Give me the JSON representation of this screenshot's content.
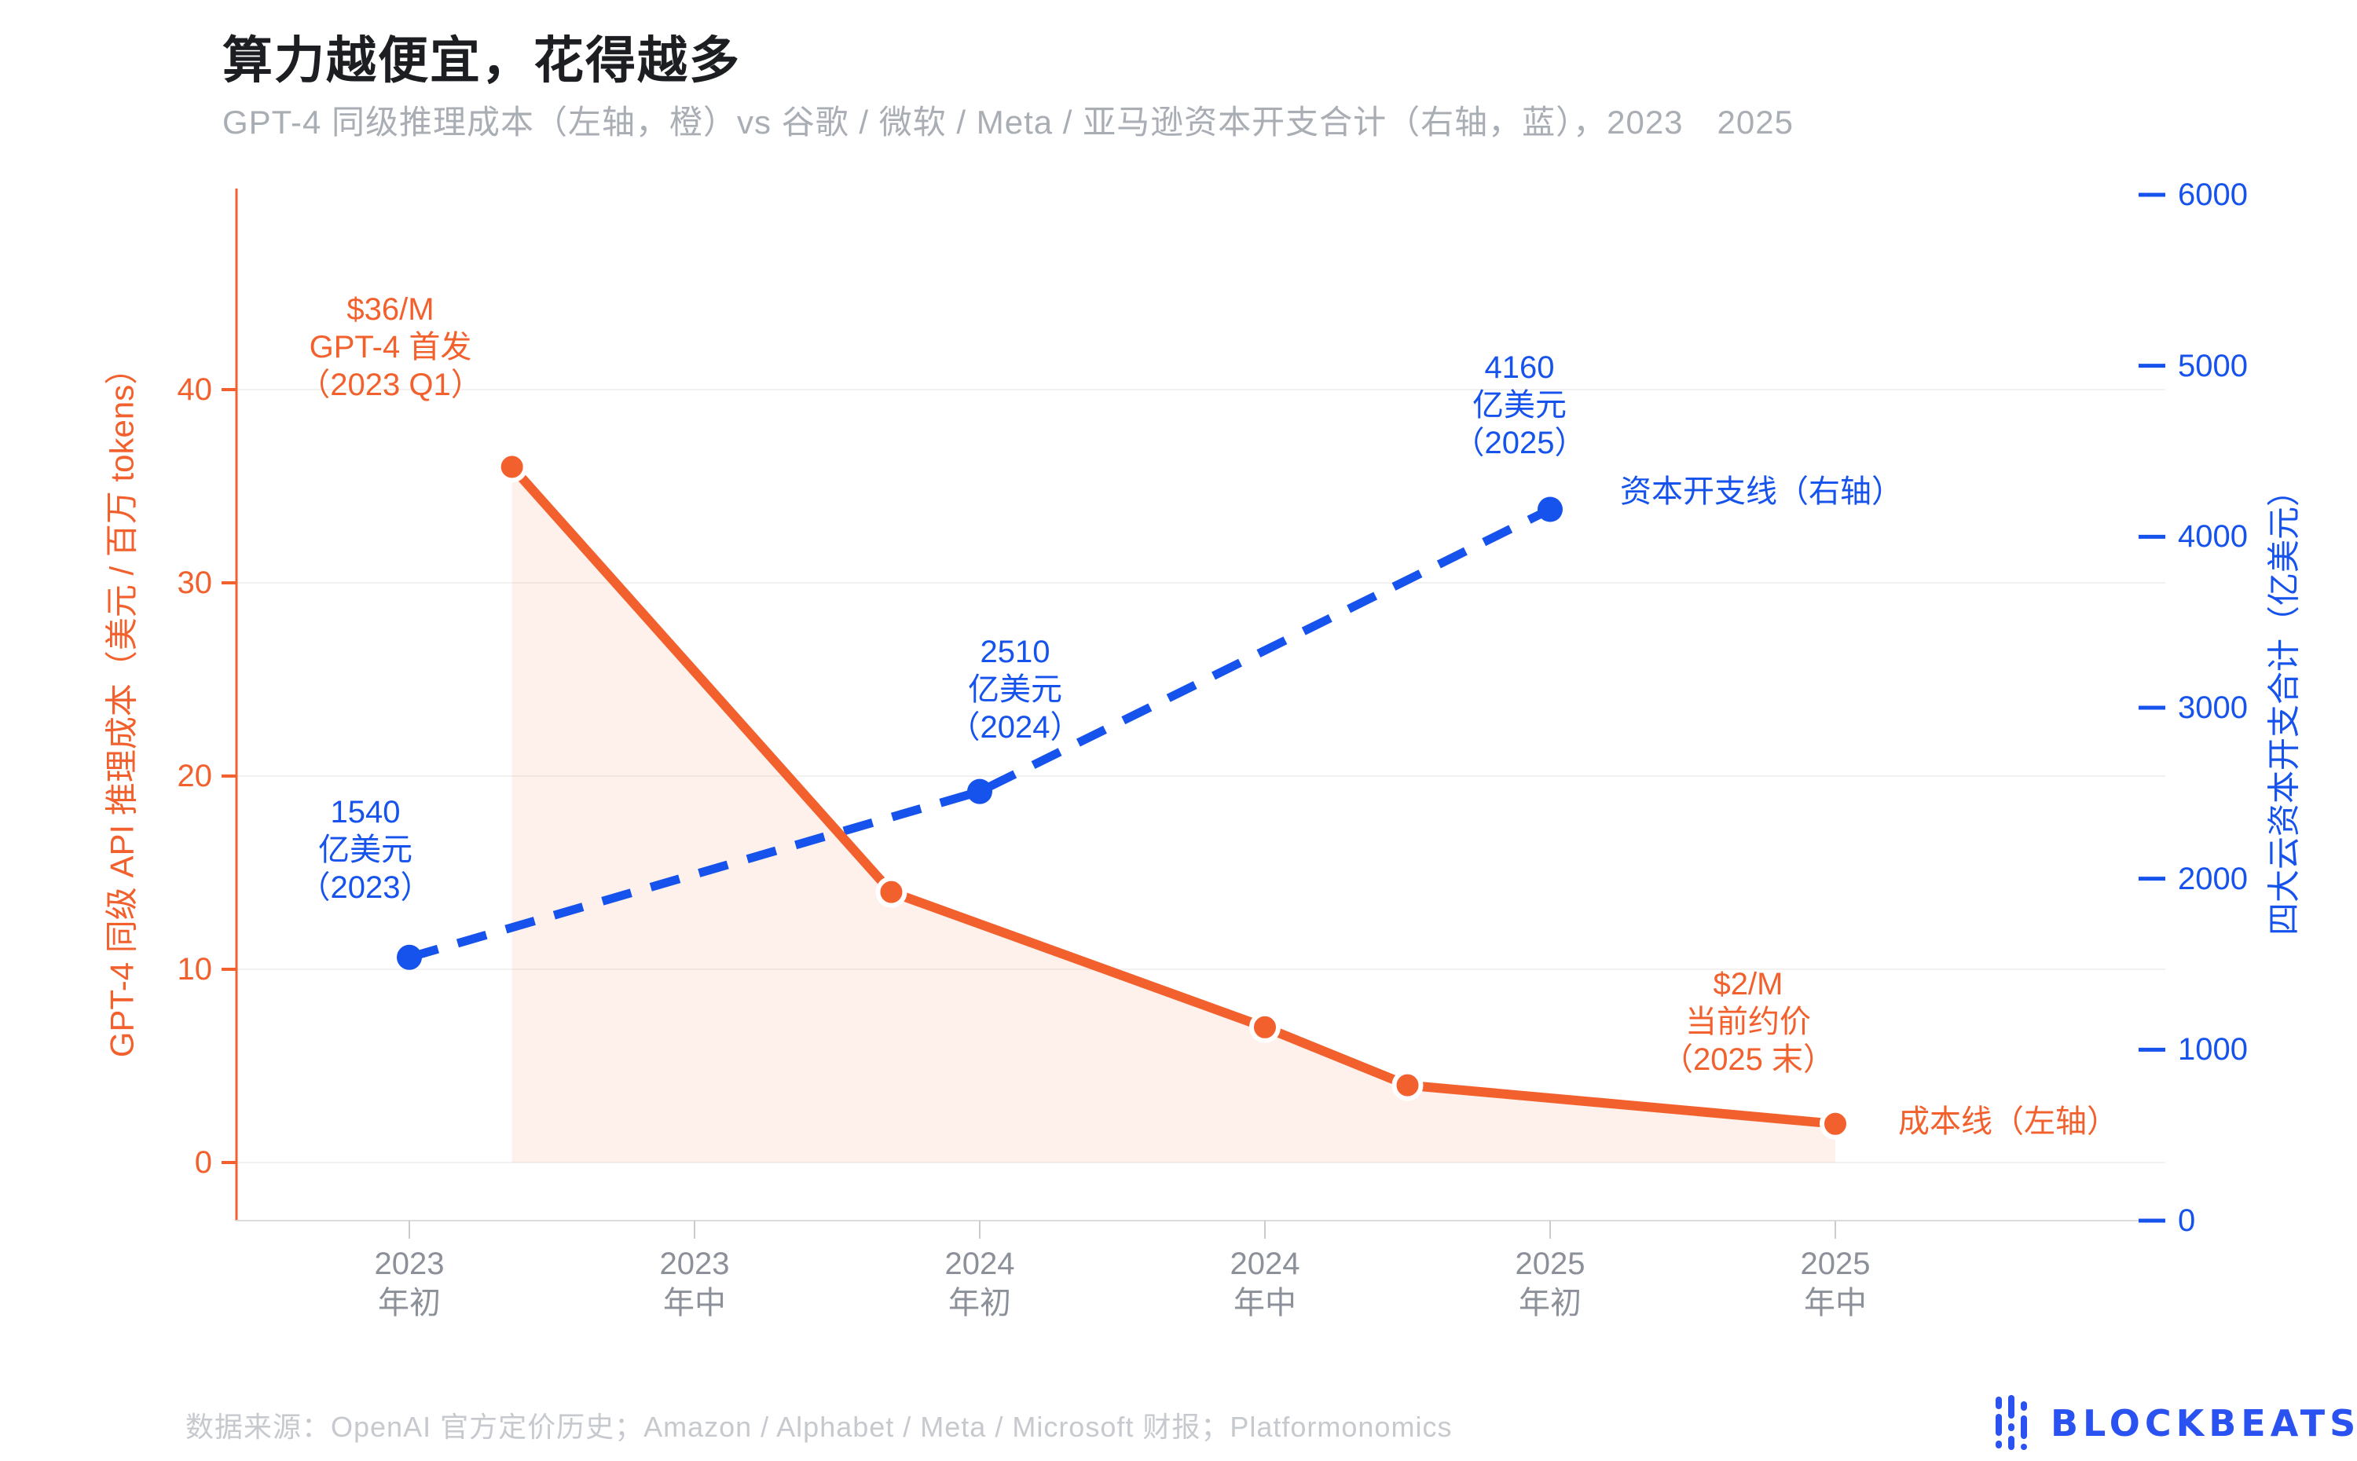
{
  "header": {
    "title": "算力越便宜，花得越多",
    "subtitle": "GPT-4 同级推理成本（左轴，橙）vs 谷歌 / 微软 / Meta / 亚马逊资本开支合计（右轴，蓝），2023　2025"
  },
  "footer": {
    "source": "数据来源：OpenAI 官方定价历史；Amazon / Alphabet / Meta / Microsoft 财报；Platformonomics",
    "logo_text": "BLOCKBEATS"
  },
  "colors": {
    "orange": "#f2612d",
    "blue": "#1652ec",
    "area_fill": "rgba(242,97,45,0.09)",
    "grid": "#f3f1ef",
    "bottom_spine": "#dcdcdc",
    "x_tick_mark": "#c9ccd1",
    "logo_blue": "#2a52f0"
  },
  "chart_data": {
    "type": "line",
    "title": "算力越便宜，花得越多",
    "x_axis": {
      "unit": "half-year",
      "ticks": [
        {
          "line1": "2023",
          "line2": "年初"
        },
        {
          "line1": "2023",
          "line2": "年中"
        },
        {
          "line1": "2024",
          "line2": "年初"
        },
        {
          "line1": "2024",
          "line2": "年中"
        },
        {
          "line1": "2025",
          "line2": "年初"
        },
        {
          "line1": "2025",
          "line2": "年中"
        }
      ]
    },
    "left_axis": {
      "label": "GPT-4 同级 API 推理成本（美元 / 百万 tokens）",
      "ticks": [
        0,
        10,
        20,
        30,
        40
      ],
      "range": [
        0,
        50
      ],
      "color": "orange"
    },
    "right_axis": {
      "label": "四大云资本开支合计（亿美元）",
      "ticks": [
        0,
        1000,
        2000,
        3000,
        4000,
        5000,
        6000
      ],
      "range": [
        0,
        6000
      ],
      "color": "blue"
    },
    "series": [
      {
        "name": "成本线（左轴）",
        "axis": "left",
        "style": "solid",
        "color": "orange",
        "area_fill": true,
        "points": [
          [
            0.36,
            36
          ],
          [
            1.69,
            14
          ],
          [
            3.0,
            7
          ],
          [
            3.5,
            4
          ],
          [
            5.0,
            2
          ]
        ]
      },
      {
        "name": "资本开支线（右轴）",
        "axis": "right",
        "style": "dashed",
        "color": "blue",
        "area_fill": false,
        "points": [
          [
            0,
            1540
          ],
          [
            2,
            2510
          ],
          [
            4,
            4160
          ]
        ]
      }
    ],
    "annotations": [
      {
        "lines": [
          "$36/M",
          "GPT-4 首发",
          "（2023 Q1）"
        ],
        "color": "orange",
        "x": 497,
        "y": 442,
        "align": "center"
      },
      {
        "lines": [
          "1540",
          "亿美元",
          "（2023）"
        ],
        "color": "blue",
        "x": 465,
        "y": 1082,
        "align": "center"
      },
      {
        "lines": [
          "2510",
          "亿美元",
          "（2024）"
        ],
        "color": "blue",
        "x": 1292,
        "y": 878,
        "align": "center"
      },
      {
        "lines": [
          "4160",
          "亿美元",
          "（2025）"
        ],
        "color": "blue",
        "x": 1934,
        "y": 516,
        "align": "center"
      },
      {
        "lines": [
          "$2/M",
          "当前约价",
          "（2025 末）"
        ],
        "color": "orange",
        "x": 2225,
        "y": 1301,
        "align": "center"
      },
      {
        "lines": [
          "资本开支线（右轴）"
        ],
        "color": "blue",
        "x": 2062,
        "y": 626,
        "align": "left"
      },
      {
        "lines": [
          "成本线（左轴）"
        ],
        "color": "orange",
        "x": 2416,
        "y": 1428,
        "align": "left"
      }
    ],
    "grid": "horizontal, left-axis ticks only",
    "legend": "inline labels next to line ends"
  }
}
